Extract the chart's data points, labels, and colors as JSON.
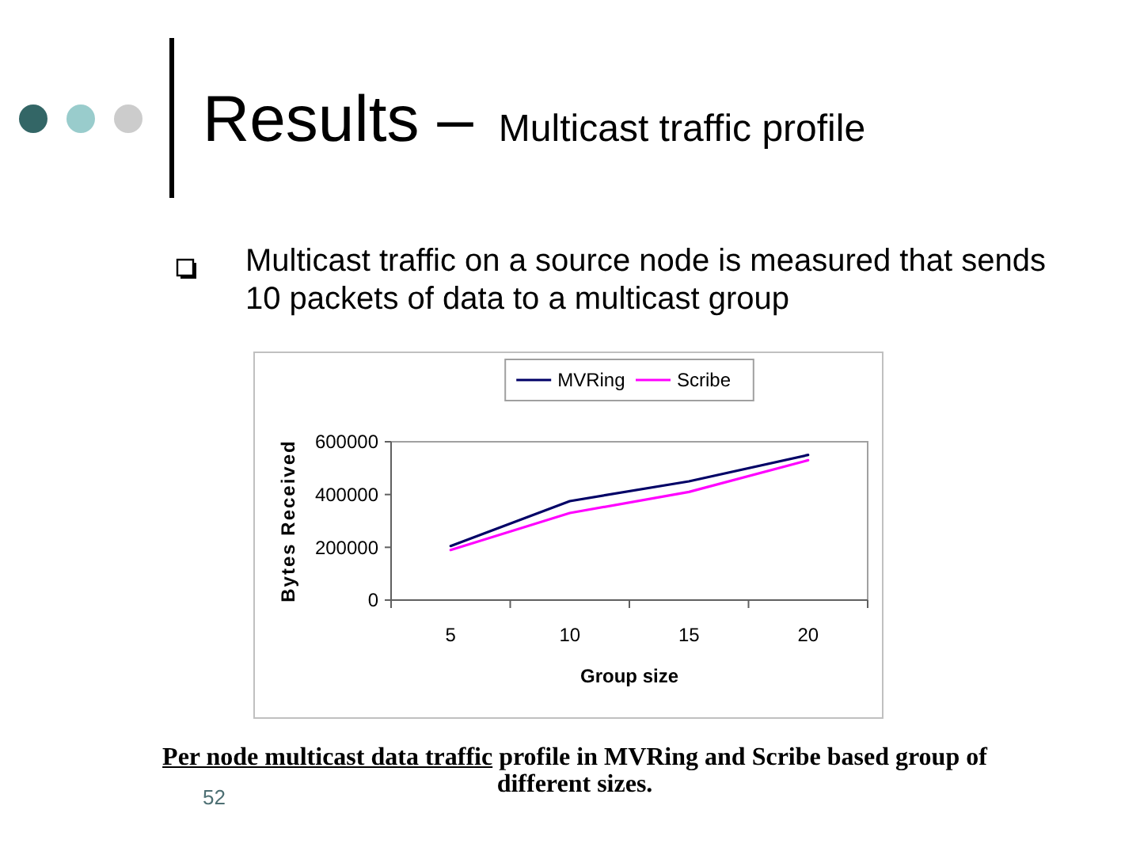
{
  "chart_data": {
    "type": "line",
    "title": "Results –",
    "subtitle": "Multicast traffic profile",
    "xlabel": "Group size",
    "ylabel": "Bytes Received",
    "categories": [
      "5",
      "10",
      "15",
      "20"
    ],
    "series": [
      {
        "name": "MVRing",
        "color": "#000066",
        "values": [
          205000,
          375000,
          450000,
          550000
        ]
      },
      {
        "name": "Scribe",
        "color": "#ff00ff",
        "values": [
          190000,
          330000,
          410000,
          530000
        ]
      }
    ],
    "ylim": [
      0,
      600000
    ],
    "yticks": [
      0,
      200000,
      400000,
      600000
    ],
    "grid": false,
    "legend": "top",
    "marker": "none",
    "line_style": "solid",
    "annotations": [
      "Multicast traffic on a source node is measured that sends 10 packets of data to a multicast group",
      "Per node multicast data traffic",
      "profile in MVRing and Scribe based group of different sizes.",
      "52"
    ]
  }
}
